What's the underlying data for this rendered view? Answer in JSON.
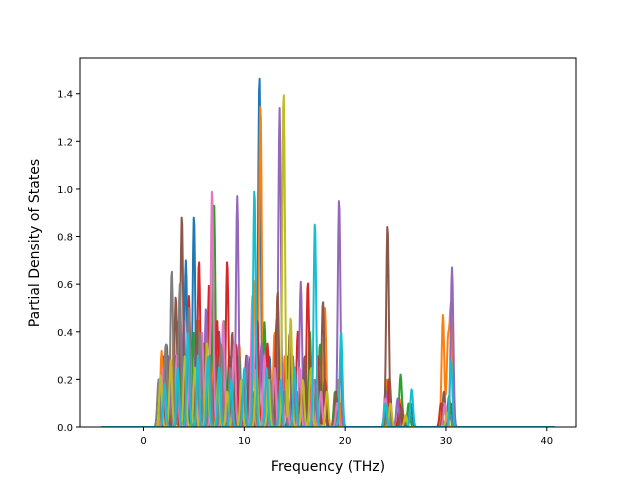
{
  "chart_data": {
    "type": "line",
    "title": "",
    "xlabel": "Frequency (THz)",
    "ylabel": "Partial Density of States",
    "xlim": [
      -6.3,
      42.9
    ],
    "ylim": [
      0,
      1.55
    ],
    "xticks": [
      0,
      10,
      20,
      30,
      40
    ],
    "yticks": [
      0.0,
      0.2,
      0.4,
      0.6,
      0.8,
      1.0,
      1.2,
      1.4
    ],
    "xtick_labels": [
      "0",
      "10",
      "20",
      "30",
      "40"
    ],
    "ytick_labels": [
      "0.0",
      "0.2",
      "0.4",
      "0.6",
      "0.8",
      "1.0",
      "1.2",
      "1.4"
    ],
    "grid": false,
    "legend": "none",
    "series": [
      {
        "color": "#1f77b4",
        "peaks": [
          [
            2.0,
            0.3
          ],
          [
            3.5,
            0.45
          ],
          [
            4.2,
            0.7
          ],
          [
            5.0,
            0.89
          ],
          [
            6.0,
            0.35
          ],
          [
            7.5,
            0.4
          ],
          [
            8.5,
            0.3
          ],
          [
            10.5,
            0.25
          ],
          [
            11.5,
            1.48
          ],
          [
            12.5,
            0.3
          ],
          [
            14.5,
            0.35
          ],
          [
            16.0,
            0.25
          ],
          [
            19.5,
            0.1
          ],
          [
            24.2,
            0.15
          ],
          [
            25.5,
            0.08
          ],
          [
            26.5,
            0.1
          ],
          [
            30.5,
            0.1
          ]
        ]
      },
      {
        "color": "#ff7f0e",
        "peaks": [
          [
            1.8,
            0.32
          ],
          [
            3.0,
            0.4
          ],
          [
            4.5,
            0.5
          ],
          [
            5.5,
            0.45
          ],
          [
            7.0,
            0.55
          ],
          [
            8.0,
            0.3
          ],
          [
            9.5,
            0.35
          ],
          [
            11.0,
            0.62
          ],
          [
            11.6,
            1.36
          ],
          [
            13.0,
            0.4
          ],
          [
            14.0,
            0.3
          ],
          [
            16.5,
            0.35
          ],
          [
            18.0,
            0.5
          ],
          [
            19.3,
            0.2
          ],
          [
            24.1,
            0.2
          ],
          [
            25.6,
            0.12
          ],
          [
            29.7,
            0.47
          ],
          [
            30.2,
            0.35
          ],
          [
            30.5,
            0.49
          ]
        ]
      },
      {
        "color": "#2ca02c",
        "peaks": [
          [
            2.5,
            0.25
          ],
          [
            3.8,
            0.35
          ],
          [
            5.0,
            0.4
          ],
          [
            6.5,
            0.55
          ],
          [
            7.0,
            0.94
          ],
          [
            8.0,
            0.45
          ],
          [
            9.5,
            0.3
          ],
          [
            12.0,
            0.44
          ],
          [
            13.0,
            0.25
          ],
          [
            14.8,
            0.3
          ],
          [
            16.5,
            0.4
          ],
          [
            17.5,
            0.35
          ],
          [
            19.0,
            0.15
          ],
          [
            24.3,
            0.2
          ],
          [
            25.5,
            0.22
          ],
          [
            26.3,
            0.1
          ],
          [
            30.3,
            0.13
          ]
        ]
      },
      {
        "color": "#d62728",
        "peaks": [
          [
            2.2,
            0.2
          ],
          [
            3.2,
            0.3
          ],
          [
            4.5,
            0.55
          ],
          [
            5.5,
            0.7
          ],
          [
            6.5,
            0.6
          ],
          [
            7.3,
            0.45
          ],
          [
            8.3,
            0.7
          ],
          [
            9.2,
            0.35
          ],
          [
            10.2,
            0.3
          ],
          [
            11.3,
            0.45
          ],
          [
            12.3,
            0.35
          ],
          [
            13.2,
            0.45
          ],
          [
            14.2,
            0.3
          ],
          [
            15.3,
            0.4
          ],
          [
            16.3,
            0.61
          ],
          [
            17.3,
            0.3
          ],
          [
            18.0,
            0.2
          ],
          [
            24.4,
            0.2
          ],
          [
            25.4,
            0.1
          ],
          [
            29.5,
            0.1
          ]
        ]
      },
      {
        "color": "#9467bd",
        "peaks": [
          [
            2.5,
            0.3
          ],
          [
            4.0,
            0.45
          ],
          [
            5.2,
            0.35
          ],
          [
            6.2,
            0.5
          ],
          [
            7.6,
            0.3
          ],
          [
            9.3,
            0.97
          ],
          [
            10.3,
            0.3
          ],
          [
            11.7,
            0.35
          ],
          [
            13.5,
            1.34
          ],
          [
            14.8,
            0.3
          ],
          [
            15.6,
            0.61
          ],
          [
            17.0,
            0.2
          ],
          [
            19.4,
            0.96
          ],
          [
            24.0,
            0.15
          ],
          [
            25.2,
            0.12
          ],
          [
            30.6,
            0.67
          ]
        ]
      },
      {
        "color": "#8c564b",
        "peaks": [
          [
            2.3,
            0.35
          ],
          [
            3.2,
            0.55
          ],
          [
            3.8,
            0.89
          ],
          [
            5.3,
            0.45
          ],
          [
            6.0,
            0.35
          ],
          [
            7.1,
            0.3
          ],
          [
            8.8,
            0.4
          ],
          [
            10.6,
            0.3
          ],
          [
            12.5,
            0.25
          ],
          [
            13.3,
            0.57
          ],
          [
            14.5,
            0.4
          ],
          [
            16.0,
            0.3
          ],
          [
            17.8,
            0.53
          ],
          [
            19.1,
            0.15
          ],
          [
            24.2,
            0.85
          ],
          [
            25.6,
            0.08
          ],
          [
            29.8,
            0.15
          ]
        ]
      },
      {
        "color": "#e377c2",
        "peaks": [
          [
            2.0,
            0.25
          ],
          [
            3.3,
            0.3
          ],
          [
            4.6,
            0.35
          ],
          [
            5.8,
            0.4
          ],
          [
            6.8,
            1.0
          ],
          [
            7.9,
            0.45
          ],
          [
            9.0,
            0.35
          ],
          [
            10.8,
            0.55
          ],
          [
            12.0,
            0.3
          ],
          [
            13.0,
            0.25
          ],
          [
            14.2,
            0.2
          ],
          [
            15.5,
            0.25
          ],
          [
            16.8,
            0.2
          ],
          [
            17.6,
            0.15
          ],
          [
            19.2,
            0.1
          ],
          [
            24.0,
            0.12
          ],
          [
            29.9,
            0.1
          ]
        ]
      },
      {
        "color": "#7f7f7f",
        "peaks": [
          [
            1.5,
            0.2
          ],
          [
            2.2,
            0.35
          ],
          [
            2.8,
            0.66
          ],
          [
            3.6,
            0.6
          ],
          [
            4.5,
            0.5
          ],
          [
            5.6,
            0.4
          ],
          [
            6.6,
            0.3
          ],
          [
            7.7,
            0.35
          ],
          [
            8.6,
            0.25
          ],
          [
            9.8,
            0.2
          ],
          [
            11.0,
            0.15
          ],
          [
            12.6,
            0.2
          ],
          [
            14.0,
            0.15
          ],
          [
            15.2,
            0.15
          ],
          [
            17.1,
            0.15
          ],
          [
            24.3,
            0.08
          ],
          [
            30.4,
            0.05
          ]
        ]
      },
      {
        "color": "#bcbd22",
        "peaks": [
          [
            1.7,
            0.22
          ],
          [
            2.7,
            0.28
          ],
          [
            4.1,
            0.3
          ],
          [
            5.1,
            0.25
          ],
          [
            6.3,
            0.35
          ],
          [
            7.4,
            0.2
          ],
          [
            8.3,
            0.15
          ],
          [
            9.7,
            0.2
          ],
          [
            11.2,
            0.25
          ],
          [
            12.4,
            0.2
          ],
          [
            13.9,
            1.41
          ],
          [
            14.6,
            0.46
          ],
          [
            15.8,
            0.2
          ],
          [
            16.6,
            0.25
          ],
          [
            18.2,
            0.15
          ],
          [
            24.5,
            0.1
          ],
          [
            26.0,
            0.05
          ],
          [
            30.1,
            0.06
          ]
        ]
      },
      {
        "color": "#17becf",
        "peaks": [
          [
            2.1,
            0.18
          ],
          [
            3.4,
            0.25
          ],
          [
            4.4,
            0.4
          ],
          [
            5.4,
            0.3
          ],
          [
            6.4,
            0.3
          ],
          [
            7.5,
            0.25
          ],
          [
            8.7,
            0.2
          ],
          [
            10.0,
            0.25
          ],
          [
            11.0,
            1.0
          ],
          [
            12.2,
            0.25
          ],
          [
            13.6,
            0.2
          ],
          [
            15.0,
            0.25
          ],
          [
            17.0,
            0.86
          ],
          [
            19.6,
            0.4
          ],
          [
            24.0,
            0.1
          ],
          [
            26.6,
            0.16
          ],
          [
            30.5,
            0.28
          ]
        ]
      }
    ]
  }
}
